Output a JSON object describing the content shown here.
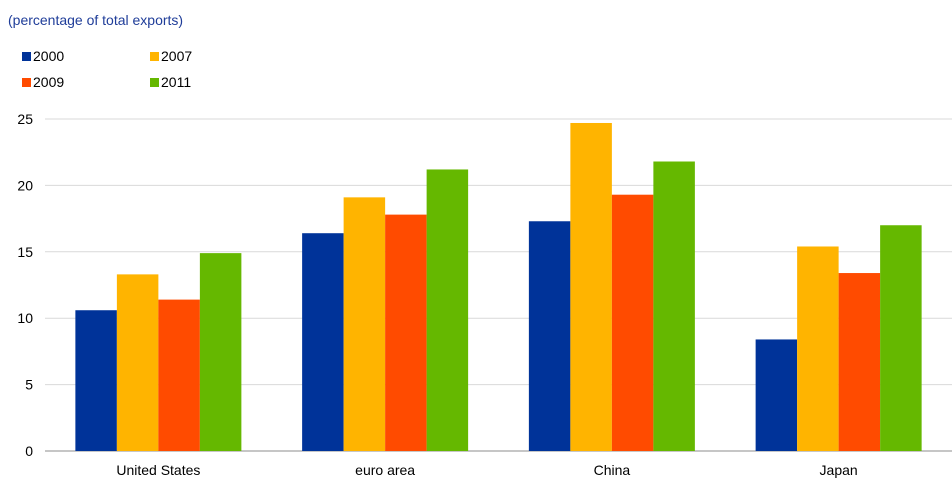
{
  "chart_data": {
    "type": "bar",
    "subtitle": "(percentage of total exports)",
    "categories": [
      "United States",
      "euro area",
      "China",
      "Japan"
    ],
    "series": [
      {
        "name": "2000",
        "color": "#003399",
        "values": [
          10.6,
          16.4,
          17.3,
          8.4
        ]
      },
      {
        "name": "2007",
        "color": "#ffb400",
        "values": [
          13.3,
          19.1,
          24.7,
          15.4
        ]
      },
      {
        "name": "2009",
        "color": "#ff4b00",
        "values": [
          11.4,
          17.8,
          19.3,
          13.4
        ]
      },
      {
        "name": "2011",
        "color": "#65b800",
        "values": [
          14.9,
          21.2,
          21.8,
          17.0
        ]
      }
    ],
    "yticks": [
      "0",
      "5",
      "10",
      "15",
      "20",
      "25"
    ],
    "ylim": [
      0,
      25
    ],
    "grid": true,
    "legend_position": "top-left"
  }
}
